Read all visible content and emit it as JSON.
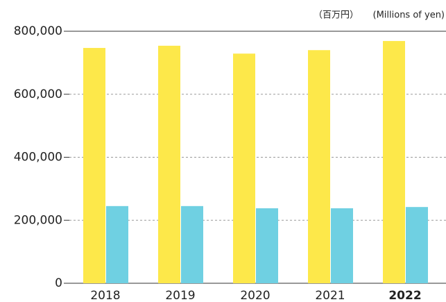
{
  "chart_data": {
    "type": "bar",
    "unit_ja": "（百万円）",
    "unit_en": "(Millions of yen)",
    "categories": [
      "2018",
      "2019",
      "2020",
      "2021",
      "2022"
    ],
    "series": [
      {
        "color": "#fde84a",
        "values": [
          747000,
          754000,
          729000,
          740000,
          769000
        ]
      },
      {
        "color": "#6fd0e2",
        "values": [
          245000,
          245000,
          238000,
          238000,
          242000
        ]
      }
    ],
    "ylim": [
      0,
      800000
    ],
    "yticks": [
      0,
      {
        "value": 200000,
        "label": "200,000"
      },
      {
        "value": 400000,
        "label": "400,000"
      },
      {
        "value": 600000,
        "label": "600,000"
      },
      {
        "value": 800000,
        "label": "800,000"
      }
    ],
    "grid": true
  }
}
